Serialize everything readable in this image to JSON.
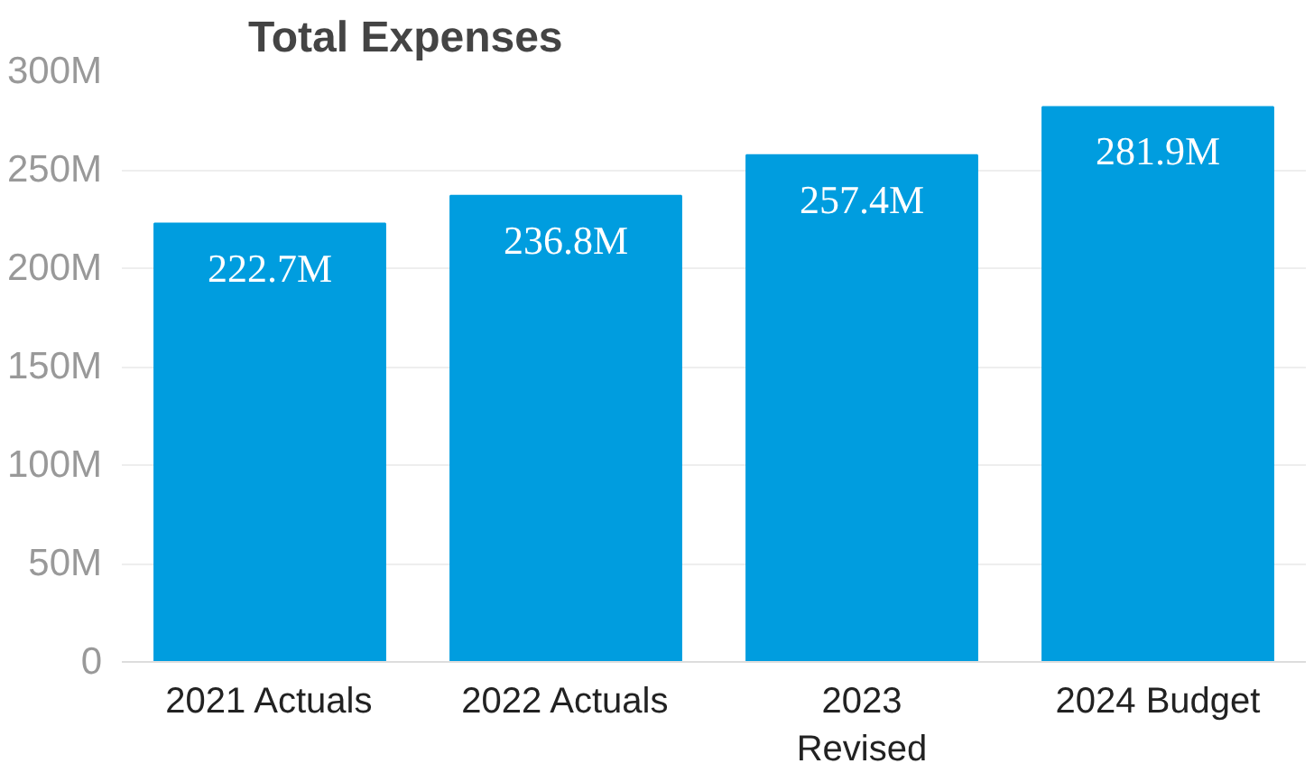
{
  "chart_data": {
    "type": "bar",
    "title": "Total Expenses",
    "categories": [
      "2021 Actuals",
      "2022 Actuals",
      "2023\nRevised",
      "2024 Budget"
    ],
    "values": [
      222.7,
      236.8,
      257.4,
      281.9
    ],
    "value_labels": [
      "222.7M",
      "236.8M",
      "257.4M",
      "281.9M"
    ],
    "color": "#009ddf",
    "ylim": [
      0,
      300
    ],
    "yticks": [
      {
        "value": 0,
        "label": "0"
      },
      {
        "value": 50,
        "label": "50M"
      },
      {
        "value": 100,
        "label": "100M"
      },
      {
        "value": 150,
        "label": "150M"
      },
      {
        "value": 200,
        "label": "200M"
      },
      {
        "value": 250,
        "label": "250M"
      },
      {
        "value": 300,
        "label": "300M"
      }
    ],
    "grid": "y"
  }
}
